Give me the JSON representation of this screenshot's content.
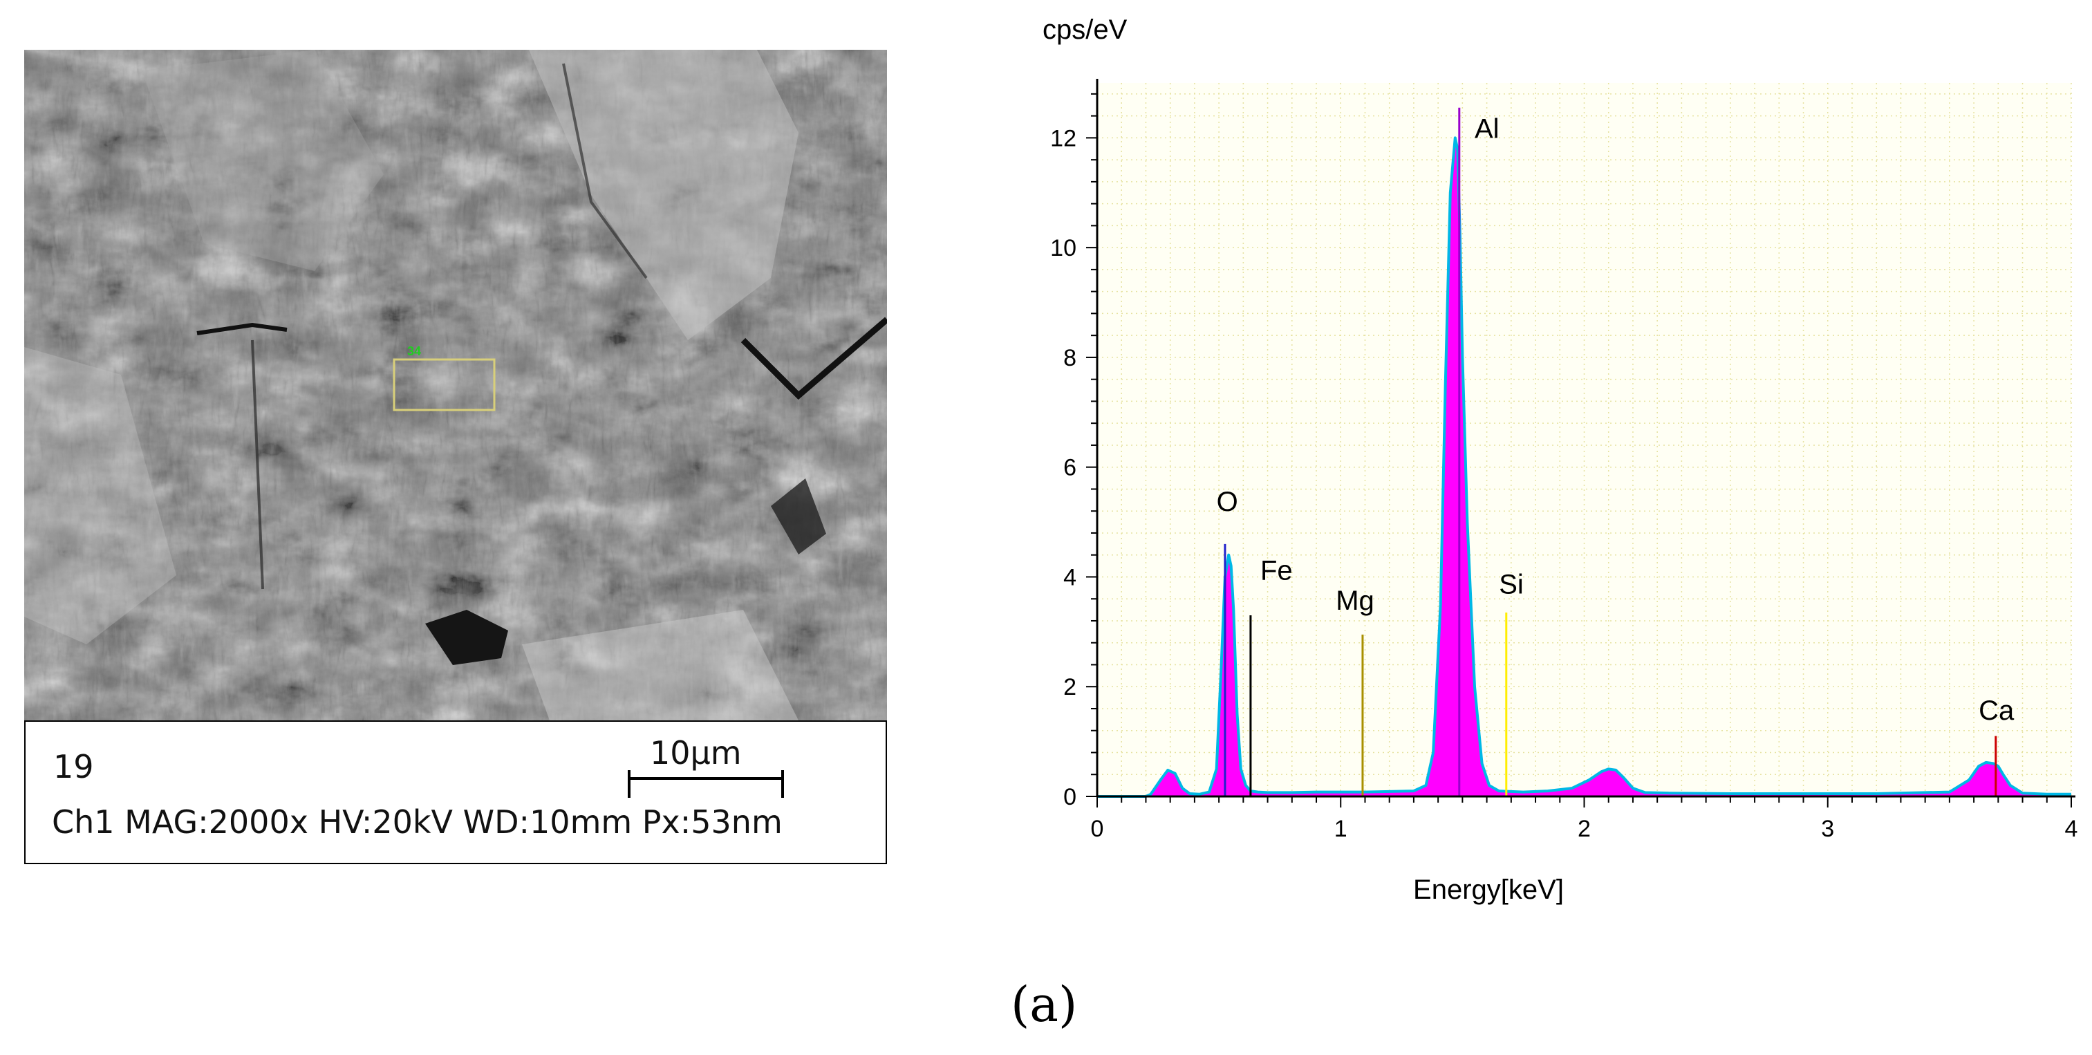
{
  "sem": {
    "frame_number": "19",
    "info_line": "Ch1  MAG:2000x HV:20kV WD:10mm Px:53nm",
    "scale_label": "10µm",
    "roi_label": "34",
    "roi_color": "#d8cf7a",
    "roi_label_color": "#22cc22"
  },
  "chart_data": {
    "type": "area",
    "ylabel": "cps/eV",
    "xlabel": "Energy[keV]",
    "xlim": [
      0,
      4
    ],
    "ylim": [
      0,
      13
    ],
    "x_ticks": [
      0,
      1,
      2,
      3,
      4
    ],
    "y_ticks": [
      0,
      2,
      4,
      6,
      8,
      10,
      12
    ],
    "grid": true,
    "series": [
      {
        "fill_color": "#ff00ff",
        "outline_color": "#00b8e6",
        "x": [
          0,
          0.2,
          0.22,
          0.26,
          0.29,
          0.32,
          0.35,
          0.38,
          0.42,
          0.46,
          0.49,
          0.51,
          0.525,
          0.54,
          0.55,
          0.56,
          0.575,
          0.59,
          0.61,
          0.63,
          0.66,
          0.7,
          0.8,
          0.9,
          1.0,
          1.1,
          1.2,
          1.3,
          1.35,
          1.38,
          1.41,
          1.43,
          1.45,
          1.47,
          1.48,
          1.49,
          1.5,
          1.52,
          1.55,
          1.58,
          1.61,
          1.65,
          1.75,
          1.85,
          1.95,
          2.02,
          2.07,
          2.1,
          2.13,
          2.16,
          2.2,
          2.25,
          2.35,
          2.6,
          2.9,
          3.2,
          3.5,
          3.58,
          3.62,
          3.65,
          3.68,
          3.7,
          3.72,
          3.75,
          3.8,
          3.9,
          4.0
        ],
        "y": [
          0,
          0,
          0.04,
          0.3,
          0.48,
          0.42,
          0.15,
          0.05,
          0.04,
          0.08,
          0.5,
          2.4,
          4.0,
          4.4,
          4.2,
          3.4,
          1.5,
          0.5,
          0.2,
          0.1,
          0.08,
          0.07,
          0.07,
          0.08,
          0.08,
          0.08,
          0.09,
          0.1,
          0.2,
          0.8,
          3.5,
          7.5,
          11.0,
          12.0,
          11.8,
          10.2,
          8.0,
          5.0,
          2.0,
          0.6,
          0.2,
          0.1,
          0.08,
          0.1,
          0.15,
          0.3,
          0.45,
          0.5,
          0.48,
          0.35,
          0.15,
          0.07,
          0.06,
          0.05,
          0.05,
          0.05,
          0.08,
          0.3,
          0.55,
          0.62,
          0.6,
          0.55,
          0.4,
          0.2,
          0.06,
          0.04,
          0.04
        ]
      }
    ],
    "element_markers": [
      {
        "label": "O",
        "energy": 0.525,
        "height": 4.6,
        "color": "#2222cc",
        "label_pos": [
          0.49,
          5.2
        ]
      },
      {
        "label": "Fe",
        "energy": 0.63,
        "height": 3.3,
        "color": "#000000",
        "label_pos": [
          0.67,
          3.95
        ]
      },
      {
        "label": "Mg",
        "energy": 1.09,
        "height": 2.95,
        "color": "#a89000",
        "label_pos": [
          0.98,
          3.4
        ]
      },
      {
        "label": "Al",
        "energy": 1.487,
        "height": 12.55,
        "color": "#9900cc",
        "label_pos": [
          1.55,
          12.0
        ]
      },
      {
        "label": "Si",
        "energy": 1.68,
        "height": 3.35,
        "color": "#ffee00",
        "label_pos": [
          1.65,
          3.7
        ]
      },
      {
        "label": "Ca",
        "energy": 3.69,
        "height": 1.1,
        "color": "#cc0000",
        "label_pos": [
          3.62,
          1.4
        ]
      }
    ]
  },
  "caption": "(a)"
}
